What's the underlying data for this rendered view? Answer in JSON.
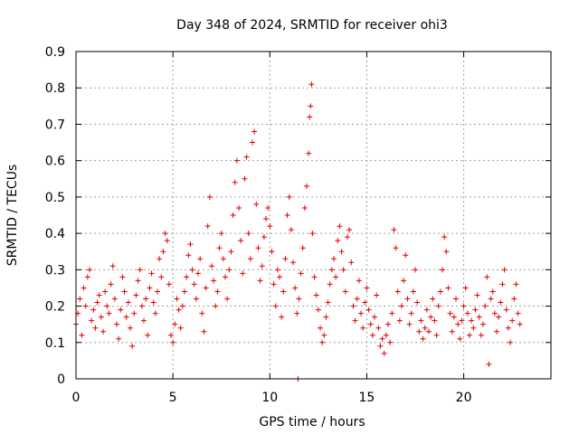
{
  "chart_data": {
    "type": "scatter",
    "title": "Day 348 of 2024, SRMTID for receiver ohi3",
    "xlabel": "GPS time / hours",
    "ylabel": "SRMTID / TECUs",
    "xlim": [
      0,
      24.5
    ],
    "ylim": [
      0,
      0.9
    ],
    "xticks": [
      0,
      5,
      10,
      15,
      20
    ],
    "xtick_labels": [
      "0",
      "5",
      "10",
      "15",
      "20"
    ],
    "yticks": [
      0,
      0.1,
      0.2,
      0.3,
      0.4,
      0.5,
      0.6,
      0.7,
      0.8,
      0.9
    ],
    "ytick_labels": [
      "0",
      "0.1",
      "0.2",
      "0.3",
      "0.4",
      "0.5",
      "0.6",
      "0.7",
      "0.8",
      "0.9"
    ],
    "grid": true,
    "marker": "+",
    "color": "#e00000",
    "series": [
      {
        "name": "SRMTID",
        "points": [
          [
            0.0,
            0.15
          ],
          [
            0.1,
            0.18
          ],
          [
            0.2,
            0.22
          ],
          [
            0.3,
            0.12
          ],
          [
            0.4,
            0.25
          ],
          [
            0.5,
            0.2
          ],
          [
            0.6,
            0.28
          ],
          [
            0.7,
            0.3
          ],
          [
            0.8,
            0.16
          ],
          [
            0.9,
            0.19
          ],
          [
            1.0,
            0.14
          ],
          [
            1.1,
            0.21
          ],
          [
            1.2,
            0.23
          ],
          [
            1.3,
            0.17
          ],
          [
            1.4,
            0.13
          ],
          [
            1.5,
            0.24
          ],
          [
            1.6,
            0.2
          ],
          [
            1.7,
            0.18
          ],
          [
            1.8,
            0.26
          ],
          [
            1.9,
            0.31
          ],
          [
            2.0,
            0.22
          ],
          [
            2.1,
            0.15
          ],
          [
            2.2,
            0.11
          ],
          [
            2.3,
            0.19
          ],
          [
            2.4,
            0.28
          ],
          [
            2.5,
            0.24
          ],
          [
            2.6,
            0.17
          ],
          [
            2.7,
            0.21
          ],
          [
            2.8,
            0.14
          ],
          [
            2.9,
            0.09
          ],
          [
            3.0,
            0.18
          ],
          [
            3.1,
            0.23
          ],
          [
            3.2,
            0.27
          ],
          [
            3.3,
            0.3
          ],
          [
            3.4,
            0.2
          ],
          [
            3.5,
            0.16
          ],
          [
            3.6,
            0.22
          ],
          [
            3.7,
            0.12
          ],
          [
            3.8,
            0.25
          ],
          [
            3.9,
            0.29
          ],
          [
            4.0,
            0.21
          ],
          [
            4.1,
            0.18
          ],
          [
            4.2,
            0.24
          ],
          [
            4.3,
            0.33
          ],
          [
            4.4,
            0.28
          ],
          [
            4.5,
            0.35
          ],
          [
            4.6,
            0.4
          ],
          [
            4.7,
            0.38
          ],
          [
            4.8,
            0.26
          ],
          [
            4.9,
            0.12
          ],
          [
            5.0,
            0.1
          ],
          [
            5.1,
            0.15
          ],
          [
            5.2,
            0.22
          ],
          [
            5.3,
            0.19
          ],
          [
            5.4,
            0.14
          ],
          [
            5.5,
            0.2
          ],
          [
            5.6,
            0.24
          ],
          [
            5.7,
            0.28
          ],
          [
            5.8,
            0.34
          ],
          [
            5.9,
            0.37
          ],
          [
            6.0,
            0.3
          ],
          [
            6.1,
            0.26
          ],
          [
            6.2,
            0.22
          ],
          [
            6.3,
            0.29
          ],
          [
            6.4,
            0.33
          ],
          [
            6.5,
            0.18
          ],
          [
            6.6,
            0.13
          ],
          [
            6.7,
            0.25
          ],
          [
            6.8,
            0.42
          ],
          [
            6.9,
            0.5
          ],
          [
            7.0,
            0.31
          ],
          [
            7.1,
            0.27
          ],
          [
            7.2,
            0.2
          ],
          [
            7.3,
            0.24
          ],
          [
            7.4,
            0.36
          ],
          [
            7.5,
            0.4
          ],
          [
            7.6,
            0.33
          ],
          [
            7.7,
            0.28
          ],
          [
            7.8,
            0.22
          ],
          [
            7.9,
            0.3
          ],
          [
            8.0,
            0.35
          ],
          [
            8.1,
            0.45
          ],
          [
            8.2,
            0.54
          ],
          [
            8.3,
            0.6
          ],
          [
            8.4,
            0.47
          ],
          [
            8.5,
            0.38
          ],
          [
            8.6,
            0.29
          ],
          [
            8.7,
            0.55
          ],
          [
            8.8,
            0.61
          ],
          [
            8.9,
            0.4
          ],
          [
            9.0,
            0.33
          ],
          [
            9.1,
            0.65
          ],
          [
            9.2,
            0.68
          ],
          [
            9.3,
            0.48
          ],
          [
            9.4,
            0.36
          ],
          [
            9.5,
            0.27
          ],
          [
            9.6,
            0.31
          ],
          [
            9.7,
            0.39
          ],
          [
            9.8,
            0.44
          ],
          [
            9.9,
            0.47
          ],
          [
            10.0,
            0.42
          ],
          [
            10.1,
            0.35
          ],
          [
            10.2,
            0.26
          ],
          [
            10.3,
            0.2
          ],
          [
            10.4,
            0.3
          ],
          [
            10.5,
            0.28
          ],
          [
            10.6,
            0.17
          ],
          [
            10.7,
            0.24
          ],
          [
            10.8,
            0.33
          ],
          [
            10.9,
            0.45
          ],
          [
            11.0,
            0.5
          ],
          [
            11.1,
            0.41
          ],
          [
            11.2,
            0.32
          ],
          [
            11.3,
            0.25
          ],
          [
            11.4,
            0.18
          ],
          [
            11.5,
            0.22
          ],
          [
            11.6,
            0.29
          ],
          [
            11.7,
            0.36
          ],
          [
            11.8,
            0.47
          ],
          [
            11.9,
            0.53
          ],
          [
            12.0,
            0.62
          ],
          [
            12.05,
            0.72
          ],
          [
            12.1,
            0.75
          ],
          [
            12.15,
            0.81
          ],
          [
            12.2,
            0.4
          ],
          [
            12.3,
            0.28
          ],
          [
            12.4,
            0.23
          ],
          [
            12.5,
            0.19
          ],
          [
            12.6,
            0.14
          ],
          [
            12.7,
            0.1
          ],
          [
            12.8,
            0.12
          ],
          [
            12.9,
            0.17
          ],
          [
            13.0,
            0.21
          ],
          [
            13.1,
            0.26
          ],
          [
            13.2,
            0.3
          ],
          [
            13.3,
            0.33
          ],
          [
            13.4,
            0.28
          ],
          [
            13.5,
            0.38
          ],
          [
            13.6,
            0.42
          ],
          [
            13.7,
            0.35
          ],
          [
            13.8,
            0.3
          ],
          [
            13.9,
            0.24
          ],
          [
            14.0,
            0.39
          ],
          [
            14.1,
            0.41
          ],
          [
            14.2,
            0.32
          ],
          [
            14.3,
            0.2
          ],
          [
            14.4,
            0.16
          ],
          [
            14.5,
            0.22
          ],
          [
            14.6,
            0.27
          ],
          [
            14.7,
            0.18
          ],
          [
            14.8,
            0.14
          ],
          [
            14.9,
            0.21
          ],
          [
            15.0,
            0.25
          ],
          [
            15.1,
            0.19
          ],
          [
            15.2,
            0.15
          ],
          [
            15.3,
            0.12
          ],
          [
            15.4,
            0.17
          ],
          [
            15.5,
            0.23
          ],
          [
            15.6,
            0.14
          ],
          [
            15.7,
            0.09
          ],
          [
            15.8,
            0.11
          ],
          [
            15.9,
            0.07
          ],
          [
            16.0,
            0.12
          ],
          [
            16.1,
            0.15
          ],
          [
            16.2,
            0.1
          ],
          [
            16.3,
            0.18
          ],
          [
            16.4,
            0.41
          ],
          [
            16.5,
            0.36
          ],
          [
            16.6,
            0.24
          ],
          [
            16.7,
            0.16
          ],
          [
            16.8,
            0.2
          ],
          [
            16.9,
            0.27
          ],
          [
            17.0,
            0.34
          ],
          [
            17.1,
            0.22
          ],
          [
            17.2,
            0.15
          ],
          [
            17.3,
            0.18
          ],
          [
            17.4,
            0.24
          ],
          [
            17.5,
            0.3
          ],
          [
            17.6,
            0.21
          ],
          [
            17.7,
            0.13
          ],
          [
            17.8,
            0.16
          ],
          [
            17.9,
            0.11
          ],
          [
            18.0,
            0.14
          ],
          [
            18.1,
            0.19
          ],
          [
            18.2,
            0.13
          ],
          [
            18.3,
            0.17
          ],
          [
            18.4,
            0.22
          ],
          [
            18.5,
            0.16
          ],
          [
            18.6,
            0.12
          ],
          [
            18.7,
            0.2
          ],
          [
            18.8,
            0.24
          ],
          [
            18.9,
            0.3
          ],
          [
            19.0,
            0.39
          ],
          [
            19.1,
            0.35
          ],
          [
            19.2,
            0.25
          ],
          [
            19.3,
            0.18
          ],
          [
            19.4,
            0.13
          ],
          [
            19.5,
            0.17
          ],
          [
            19.6,
            0.22
          ],
          [
            19.7,
            0.15
          ],
          [
            19.8,
            0.11
          ],
          [
            19.9,
            0.16
          ],
          [
            20.0,
            0.2
          ],
          [
            20.1,
            0.25
          ],
          [
            20.2,
            0.18
          ],
          [
            20.3,
            0.12
          ],
          [
            20.4,
            0.16
          ],
          [
            20.5,
            0.14
          ],
          [
            20.6,
            0.19
          ],
          [
            20.7,
            0.23
          ],
          [
            20.8,
            0.17
          ],
          [
            20.9,
            0.12
          ],
          [
            21.0,
            0.15
          ],
          [
            21.1,
            0.2
          ],
          [
            21.2,
            0.28
          ],
          [
            21.3,
            0.04
          ],
          [
            21.4,
            0.22
          ],
          [
            21.5,
            0.24
          ],
          [
            21.6,
            0.18
          ],
          [
            21.7,
            0.13
          ],
          [
            21.8,
            0.17
          ],
          [
            21.9,
            0.21
          ],
          [
            22.0,
            0.26
          ],
          [
            22.1,
            0.3
          ],
          [
            22.2,
            0.19
          ],
          [
            22.3,
            0.14
          ],
          [
            22.4,
            0.1
          ],
          [
            22.5,
            0.16
          ],
          [
            22.6,
            0.22
          ],
          [
            22.7,
            0.26
          ],
          [
            22.8,
            0.18
          ],
          [
            22.9,
            0.15
          ],
          [
            11.45,
            0.0
          ]
        ]
      }
    ]
  }
}
